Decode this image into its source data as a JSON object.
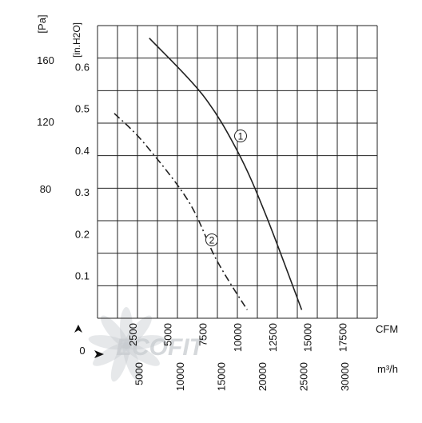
{
  "chart_data": {
    "type": "line",
    "pa_axis": {
      "unit": "[Pa]",
      "ticks": [
        "160",
        "120",
        "80"
      ]
    },
    "y_axis": {
      "unit": "[in.H2O]",
      "ticks": [
        0.1,
        0.2,
        0.3,
        0.4,
        0.5,
        0.6
      ],
      "tick_labels": [
        "0.1",
        "0.2",
        "0.3",
        "0.4",
        "0.5",
        "0.6"
      ],
      "range": [
        0,
        0.7
      ]
    },
    "x_axis_cfm": {
      "unit": "CFM",
      "ticks": [
        2500,
        5000,
        7500,
        10000,
        12500,
        15000,
        17500
      ],
      "tick_labels": [
        "2500",
        "5000",
        "7500",
        "10000",
        "12500",
        "15000",
        "17500"
      ],
      "range": [
        0,
        20000
      ]
    },
    "x_axis_m3h": {
      "unit": "m³/h",
      "ticks": [
        5000,
        10000,
        15000,
        20000,
        25000,
        30000
      ],
      "tick_labels": [
        "5000",
        "10000",
        "15000",
        "20000",
        "25000",
        "30000"
      ]
    },
    "origin_label": "0",
    "grid": true,
    "series": [
      {
        "name": "1",
        "style": "solid",
        "points": [
          [
            3700,
            0.67
          ],
          [
            7500,
            0.535
          ],
          [
            10000,
            0.4
          ],
          [
            12000,
            0.25
          ],
          [
            14600,
            0.02
          ]
        ]
      },
      {
        "name": "2",
        "style": "dashed",
        "points": [
          [
            1200,
            0.49
          ],
          [
            3300,
            0.42
          ],
          [
            6500,
            0.28
          ],
          [
            8500,
            0.14
          ],
          [
            10700,
            0.02
          ]
        ]
      }
    ],
    "watermark": "ECOFIT"
  },
  "colors": {
    "line": "#222222",
    "grid": "#222222",
    "watermark": "#c8ccd0"
  }
}
